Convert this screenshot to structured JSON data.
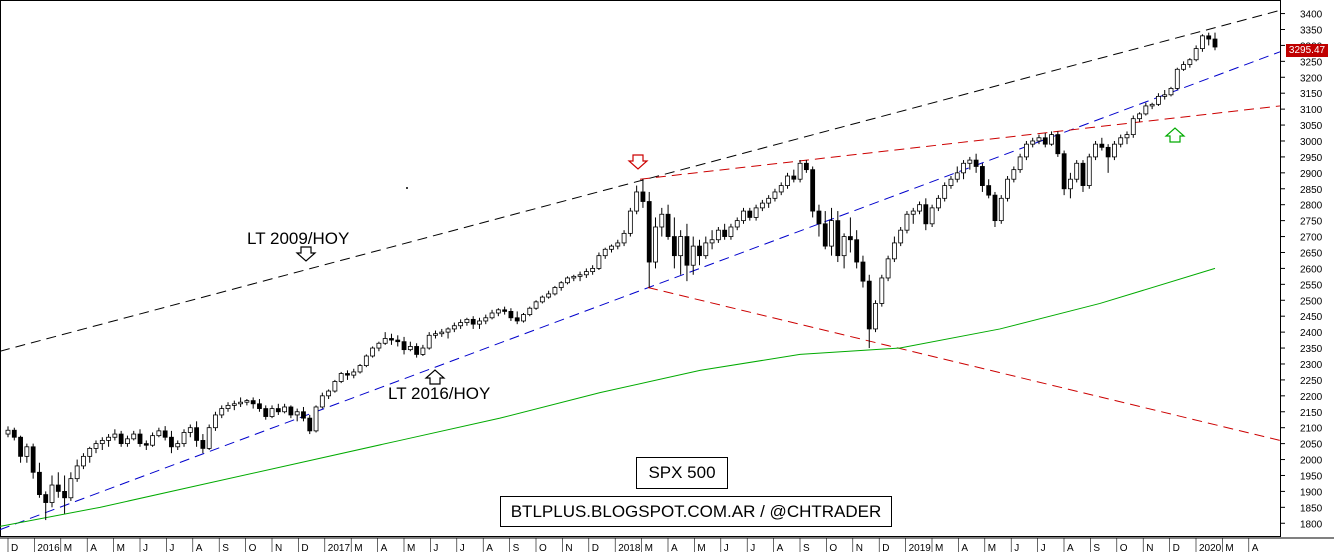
{
  "chart_data": {
    "type": "candlestick",
    "timeframe": "weekly",
    "y_ticks": [
      1800,
      1850,
      1900,
      1950,
      2000,
      2050,
      2100,
      2150,
      2200,
      2250,
      2300,
      2350,
      2400,
      2450,
      2500,
      2550,
      2600,
      2650,
      2700,
      2750,
      2800,
      2850,
      2900,
      2950,
      3000,
      3050,
      3100,
      3150,
      3200,
      3250,
      3300,
      3350,
      3400
    ],
    "ylim": [
      1760,
      3430
    ],
    "last_price_label": "3295.47",
    "x_labels": [
      "D",
      "2016",
      "M",
      "A",
      "M",
      "J",
      "J",
      "A",
      "S",
      "O",
      "N",
      "D",
      "2017",
      "M",
      "A",
      "M",
      "J",
      "J",
      "A",
      "S",
      "O",
      "N",
      "D",
      "2018",
      "M",
      "A",
      "M",
      "J",
      "J",
      "A",
      "S",
      "O",
      "N",
      "D",
      "2019",
      "M",
      "A",
      "M",
      "J",
      "J",
      "A",
      "S",
      "O",
      "N",
      "D",
      "2020",
      "M",
      "A"
    ],
    "ohlc": [
      [
        2080,
        2104,
        2070,
        2092
      ],
      [
        2092,
        2100,
        2060,
        2070
      ],
      [
        2070,
        2075,
        1990,
        2010
      ],
      [
        2010,
        2050,
        1990,
        2040
      ],
      [
        2040,
        2050,
        1940,
        1960
      ],
      [
        1960,
        1990,
        1880,
        1890
      ],
      [
        1890,
        1900,
        1810,
        1865
      ],
      [
        1865,
        1950,
        1850,
        1920
      ],
      [
        1920,
        1960,
        1880,
        1900
      ],
      [
        1900,
        1950,
        1830,
        1880
      ],
      [
        1880,
        1960,
        1870,
        1940
      ],
      [
        1940,
        2000,
        1930,
        1980
      ],
      [
        1980,
        2020,
        1970,
        2010
      ],
      [
        2010,
        2040,
        1990,
        2035
      ],
      [
        2035,
        2060,
        2020,
        2050
      ],
      [
        2050,
        2070,
        2030,
        2060
      ],
      [
        2060,
        2080,
        2040,
        2070
      ],
      [
        2070,
        2095,
        2060,
        2080
      ],
      [
        2080,
        2090,
        2040,
        2050
      ],
      [
        2050,
        2075,
        2040,
        2065
      ],
      [
        2065,
        2090,
        2060,
        2080
      ],
      [
        2080,
        2095,
        2040,
        2050
      ],
      [
        2050,
        2060,
        2030,
        2045
      ],
      [
        2045,
        2085,
        2040,
        2075
      ],
      [
        2075,
        2100,
        2070,
        2090
      ],
      [
        2090,
        2105,
        2060,
        2070
      ],
      [
        2070,
        2090,
        2020,
        2040
      ],
      [
        2040,
        2060,
        2030,
        2050
      ],
      [
        2050,
        2095,
        2040,
        2085
      ],
      [
        2085,
        2110,
        2070,
        2100
      ],
      [
        2100,
        2120,
        2040,
        2060
      ],
      [
        2060,
        2080,
        2020,
        2035
      ],
      [
        2035,
        2110,
        2030,
        2100
      ],
      [
        2100,
        2150,
        2090,
        2140
      ],
      [
        2140,
        2170,
        2130,
        2160
      ],
      [
        2160,
        2180,
        2150,
        2170
      ],
      [
        2170,
        2185,
        2155,
        2175
      ],
      [
        2175,
        2195,
        2165,
        2180
      ],
      [
        2180,
        2190,
        2170,
        2185
      ],
      [
        2185,
        2195,
        2160,
        2175
      ],
      [
        2175,
        2190,
        2150,
        2160
      ],
      [
        2160,
        2170,
        2125,
        2135
      ],
      [
        2135,
        2170,
        2130,
        2160
      ],
      [
        2160,
        2175,
        2140,
        2150
      ],
      [
        2150,
        2175,
        2145,
        2165
      ],
      [
        2165,
        2170,
        2130,
        2140
      ],
      [
        2140,
        2160,
        2120,
        2150
      ],
      [
        2150,
        2165,
        2120,
        2130
      ],
      [
        2130,
        2140,
        2080,
        2090
      ],
      [
        2090,
        2170,
        2085,
        2165
      ],
      [
        2165,
        2210,
        2160,
        2200
      ],
      [
        2200,
        2220,
        2190,
        2215
      ],
      [
        2215,
        2250,
        2210,
        2245
      ],
      [
        2245,
        2275,
        2240,
        2270
      ],
      [
        2270,
        2280,
        2250,
        2265
      ],
      [
        2265,
        2285,
        2255,
        2275
      ],
      [
        2275,
        2300,
        2270,
        2295
      ],
      [
        2295,
        2330,
        2290,
        2325
      ],
      [
        2325,
        2355,
        2320,
        2350
      ],
      [
        2350,
        2370,
        2340,
        2365
      ],
      [
        2365,
        2400,
        2360,
        2380
      ],
      [
        2380,
        2395,
        2360,
        2375
      ],
      [
        2375,
        2390,
        2355,
        2370
      ],
      [
        2370,
        2385,
        2330,
        2345
      ],
      [
        2345,
        2370,
        2340,
        2355
      ],
      [
        2355,
        2365,
        2320,
        2330
      ],
      [
        2330,
        2360,
        2325,
        2350
      ],
      [
        2350,
        2400,
        2345,
        2390
      ],
      [
        2390,
        2405,
        2380,
        2395
      ],
      [
        2395,
        2410,
        2385,
        2400
      ],
      [
        2400,
        2415,
        2380,
        2410
      ],
      [
        2410,
        2430,
        2400,
        2420
      ],
      [
        2420,
        2440,
        2410,
        2430
      ],
      [
        2430,
        2445,
        2420,
        2440
      ],
      [
        2440,
        2450,
        2410,
        2425
      ],
      [
        2425,
        2445,
        2410,
        2435
      ],
      [
        2435,
        2455,
        2425,
        2445
      ],
      [
        2445,
        2470,
        2440,
        2460
      ],
      [
        2460,
        2475,
        2450,
        2470
      ],
      [
        2470,
        2480,
        2455,
        2465
      ],
      [
        2465,
        2475,
        2435,
        2445
      ],
      [
        2445,
        2465,
        2425,
        2435
      ],
      [
        2435,
        2460,
        2430,
        2455
      ],
      [
        2455,
        2480,
        2450,
        2475
      ],
      [
        2475,
        2500,
        2470,
        2495
      ],
      [
        2495,
        2515,
        2490,
        2510
      ],
      [
        2510,
        2530,
        2505,
        2520
      ],
      [
        2520,
        2545,
        2515,
        2540
      ],
      [
        2540,
        2560,
        2530,
        2555
      ],
      [
        2555,
        2575,
        2550,
        2570
      ],
      [
        2570,
        2580,
        2560,
        2575
      ],
      [
        2575,
        2590,
        2560,
        2580
      ],
      [
        2580,
        2600,
        2570,
        2590
      ],
      [
        2590,
        2610,
        2580,
        2600
      ],
      [
        2600,
        2650,
        2595,
        2640
      ],
      [
        2640,
        2665,
        2630,
        2660
      ],
      [
        2660,
        2675,
        2650,
        2670
      ],
      [
        2670,
        2690,
        2660,
        2680
      ],
      [
        2680,
        2720,
        2670,
        2710
      ],
      [
        2710,
        2790,
        2700,
        2780
      ],
      [
        2780,
        2860,
        2770,
        2840
      ],
      [
        2840,
        2880,
        2790,
        2810
      ],
      [
        2810,
        2840,
        2540,
        2620
      ],
      [
        2620,
        2760,
        2600,
        2730
      ],
      [
        2730,
        2790,
        2700,
        2770
      ],
      [
        2770,
        2800,
        2690,
        2700
      ],
      [
        2700,
        2760,
        2600,
        2640
      ],
      [
        2640,
        2720,
        2580,
        2700
      ],
      [
        2700,
        2740,
        2560,
        2610
      ],
      [
        2610,
        2700,
        2580,
        2670
      ],
      [
        2670,
        2690,
        2610,
        2640
      ],
      [
        2640,
        2700,
        2630,
        2680
      ],
      [
        2680,
        2720,
        2660,
        2690
      ],
      [
        2690,
        2730,
        2680,
        2720
      ],
      [
        2720,
        2740,
        2690,
        2700
      ],
      [
        2700,
        2740,
        2690,
        2730
      ],
      [
        2730,
        2760,
        2720,
        2750
      ],
      [
        2750,
        2790,
        2740,
        2780
      ],
      [
        2780,
        2790,
        2750,
        2760
      ],
      [
        2760,
        2800,
        2750,
        2790
      ],
      [
        2790,
        2815,
        2780,
        2805
      ],
      [
        2805,
        2830,
        2790,
        2820
      ],
      [
        2820,
        2850,
        2810,
        2840
      ],
      [
        2840,
        2870,
        2830,
        2860
      ],
      [
        2860,
        2900,
        2850,
        2890
      ],
      [
        2890,
        2910,
        2870,
        2880
      ],
      [
        2880,
        2940,
        2870,
        2930
      ],
      [
        2930,
        2940,
        2900,
        2910
      ],
      [
        2910,
        2920,
        2760,
        2780
      ],
      [
        2780,
        2800,
        2700,
        2740
      ],
      [
        2740,
        2780,
        2660,
        2670
      ],
      [
        2670,
        2790,
        2640,
        2750
      ],
      [
        2750,
        2780,
        2620,
        2640
      ],
      [
        2640,
        2710,
        2600,
        2700
      ],
      [
        2700,
        2760,
        2650,
        2690
      ],
      [
        2690,
        2720,
        2600,
        2620
      ],
      [
        2620,
        2640,
        2540,
        2560
      ],
      [
        2560,
        2580,
        2350,
        2410
      ],
      [
        2410,
        2500,
        2400,
        2490
      ],
      [
        2490,
        2580,
        2480,
        2570
      ],
      [
        2570,
        2640,
        2560,
        2630
      ],
      [
        2630,
        2700,
        2620,
        2680
      ],
      [
        2680,
        2730,
        2670,
        2720
      ],
      [
        2720,
        2780,
        2710,
        2770
      ],
      [
        2770,
        2790,
        2740,
        2780
      ],
      [
        2780,
        2810,
        2770,
        2800
      ],
      [
        2800,
        2820,
        2720,
        2740
      ],
      [
        2740,
        2800,
        2730,
        2790
      ],
      [
        2790,
        2830,
        2780,
        2820
      ],
      [
        2820,
        2870,
        2810,
        2860
      ],
      [
        2860,
        2890,
        2850,
        2880
      ],
      [
        2880,
        2920,
        2870,
        2900
      ],
      [
        2900,
        2940,
        2880,
        2930
      ],
      [
        2930,
        2950,
        2910,
        2940
      ],
      [
        2940,
        2960,
        2900,
        2920
      ],
      [
        2920,
        2930,
        2840,
        2860
      ],
      [
        2860,
        2880,
        2820,
        2830
      ],
      [
        2830,
        2840,
        2730,
        2750
      ],
      [
        2750,
        2830,
        2740,
        2820
      ],
      [
        2820,
        2890,
        2810,
        2880
      ],
      [
        2880,
        2920,
        2870,
        2910
      ],
      [
        2910,
        2960,
        2900,
        2950
      ],
      [
        2950,
        3000,
        2940,
        2990
      ],
      [
        2990,
        3010,
        2980,
        3000
      ],
      [
        3000,
        3020,
        2990,
        3010
      ],
      [
        3010,
        3025,
        2980,
        2990
      ],
      [
        2990,
        3030,
        2985,
        3020
      ],
      [
        3020,
        3030,
        2950,
        2960
      ],
      [
        2960,
        2970,
        2830,
        2850
      ],
      [
        2850,
        2900,
        2820,
        2880
      ],
      [
        2880,
        2940,
        2870,
        2930
      ],
      [
        2930,
        2940,
        2840,
        2860
      ],
      [
        2860,
        2960,
        2850,
        2950
      ],
      [
        2950,
        3000,
        2940,
        2990
      ],
      [
        2990,
        3010,
        2970,
        2980
      ],
      [
        2980,
        2990,
        2900,
        2950
      ],
      [
        2950,
        3000,
        2940,
        2990
      ],
      [
        2990,
        3020,
        2980,
        3010
      ],
      [
        3010,
        3030,
        2990,
        3020
      ],
      [
        3020,
        3080,
        3010,
        3070
      ],
      [
        3070,
        3090,
        3060,
        3085
      ],
      [
        3085,
        3120,
        3080,
        3110
      ],
      [
        3110,
        3120,
        3100,
        3115
      ],
      [
        3115,
        3150,
        3110,
        3140
      ],
      [
        3140,
        3160,
        3130,
        3145
      ],
      [
        3145,
        3170,
        3140,
        3165
      ],
      [
        3165,
        3230,
        3160,
        3225
      ],
      [
        3225,
        3250,
        3220,
        3240
      ],
      [
        3240,
        3260,
        3230,
        3255
      ],
      [
        3255,
        3300,
        3250,
        3290
      ],
      [
        3290,
        3335,
        3280,
        3330
      ],
      [
        3330,
        3340,
        3300,
        3320
      ],
      [
        3320,
        3340,
        3285,
        3295
      ]
    ],
    "lines": {
      "lt_2009_hoy": {
        "color": "#000000",
        "dash": "10,6",
        "from": [
          0,
          2340
        ],
        "to": [
          1280,
          3410
        ]
      },
      "lt_2016_hoy": {
        "color": "#0000cc",
        "dash": "10,6",
        "from": [
          0,
          1780
        ],
        "to": [
          1280,
          3280
        ]
      },
      "resistance_red": {
        "color": "#cc0000",
        "dash": "10,6",
        "from": [
          640,
          2880
        ],
        "to": [
          1280,
          3110
        ]
      },
      "support_red": {
        "color": "#cc0000",
        "dash": "10,6",
        "from": [
          648,
          2540
        ],
        "to": [
          1280,
          2060
        ]
      },
      "moving_average_green": {
        "color": "#00aa00",
        "points": [
          [
            0,
            1790
          ],
          [
            100,
            1850
          ],
          [
            200,
            1920
          ],
          [
            300,
            1990
          ],
          [
            400,
            2060
          ],
          [
            500,
            2130
          ],
          [
            600,
            2210
          ],
          [
            700,
            2280
          ],
          [
            800,
            2330
          ],
          [
            900,
            2350
          ],
          [
            1000,
            2410
          ],
          [
            1100,
            2490
          ],
          [
            1215,
            2600
          ]
        ]
      }
    }
  },
  "annotations": {
    "lt_2009_label": "LT 2009/HOY",
    "lt_2016_label": "LT 2016/HOY",
    "title_box": "SPX 500",
    "source_box": "BTLPLUS.BLOGSPOT.COM.AR / @CHTRADER"
  },
  "colors": {
    "bull_fill": "#ffffff",
    "bear_fill": "#000000",
    "grid": "#808080",
    "price_tag_bg": "#c00000",
    "arrow_red": "#cc0000",
    "arrow_green": "#00aa00"
  }
}
